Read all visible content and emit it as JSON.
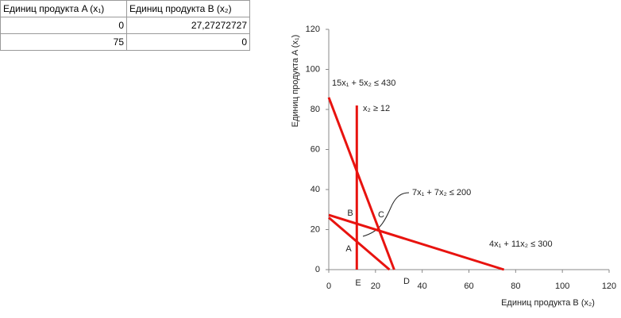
{
  "table": {
    "headers": [
      "Единиц продукта A (x₁)",
      "Единиц продукта B (x₂)"
    ],
    "rows": [
      [
        "0",
        "27,27272727"
      ],
      [
        "75",
        "0"
      ]
    ]
  },
  "chart_data": {
    "type": "line",
    "x_label": "Единиц продукта B (x₂)",
    "y_label": "Единиц продукта A (x₁)",
    "xlim": [
      0,
      120
    ],
    "ylim": [
      0,
      120
    ],
    "xticks": [
      0,
      20,
      40,
      60,
      80,
      100,
      120
    ],
    "yticks": [
      0,
      20,
      40,
      60,
      80,
      100,
      120
    ],
    "grid": false,
    "series": [
      {
        "color": "#e8130f",
        "x": [
          0,
          28
        ],
        "values": [
          86,
          0
        ]
      },
      {
        "color": "#e8130f",
        "x": [
          12,
          12
        ],
        "values": [
          0,
          82
        ]
      },
      {
        "color": "#e8130f",
        "x": [
          0,
          26
        ],
        "values": [
          26,
          0
        ]
      },
      {
        "color": "#e8130f",
        "x": [
          0,
          75
        ],
        "values": [
          27.3,
          0
        ]
      }
    ],
    "annotations": [
      "15x₁ + 5x₂ ≤ 430",
      "x₂ ≥ 12",
      "7x₁ + 7x₂ ≤ 200",
      "4x₁ + 11x₂ ≤ 300"
    ],
    "point_labels": [
      "A",
      "B",
      "C",
      "D",
      "E"
    ]
  }
}
